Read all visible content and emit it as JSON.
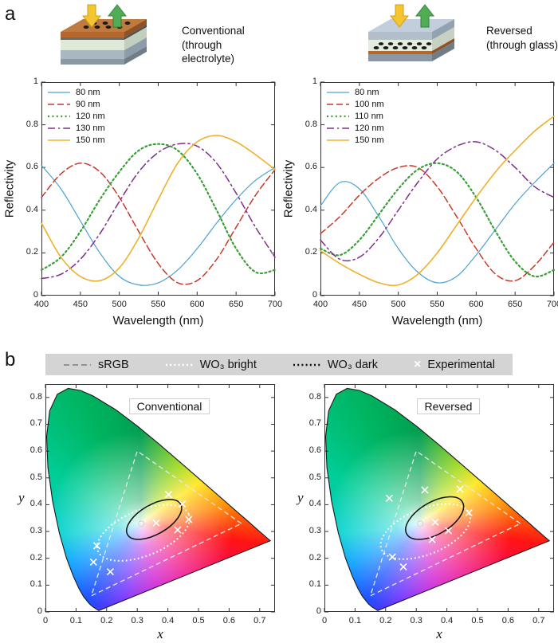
{
  "panel_a": {
    "label": "a",
    "conventional_caption": [
      "Conventional",
      "(through electrolyte)"
    ],
    "reversed_caption": [
      "Reversed",
      "(through glass)"
    ]
  },
  "panel_b": {
    "label": "b",
    "legend": {
      "srgb": "sRGB",
      "wo3_bright": "WO₃ bright",
      "wo3_dark": "WO₃ dark",
      "experimental": "Experimental"
    }
  },
  "colors": {
    "blue": "#4BA3D3",
    "red": "#C8392B",
    "green": "#3C9E38",
    "purple": "#7E2F8E",
    "orange": "#EFB02A",
    "legend_strip_bg": "#d4d4d4"
  },
  "cie_spectral_locus": [
    [
      0.1741,
      0.005
    ],
    [
      0.1566,
      0.0177
    ],
    [
      0.144,
      0.0297
    ],
    [
      0.1241,
      0.0578
    ],
    [
      0.1096,
      0.0868
    ],
    [
      0.0913,
      0.1327
    ],
    [
      0.0687,
      0.2007
    ],
    [
      0.0454,
      0.295
    ],
    [
      0.0235,
      0.4127
    ],
    [
      0.0082,
      0.5384
    ],
    [
      0.0039,
      0.6548
    ],
    [
      0.0139,
      0.7502
    ],
    [
      0.0389,
      0.812
    ],
    [
      0.0743,
      0.8338
    ],
    [
      0.1142,
      0.8262
    ],
    [
      0.1547,
      0.8059
    ],
    [
      0.2296,
      0.7543
    ],
    [
      0.3016,
      0.6923
    ],
    [
      0.3731,
      0.6245
    ],
    [
      0.4441,
      0.5547
    ],
    [
      0.5125,
      0.4866
    ],
    [
      0.5752,
      0.4242
    ],
    [
      0.627,
      0.3725
    ],
    [
      0.6658,
      0.334
    ],
    [
      0.6915,
      0.3083
    ],
    [
      0.719,
      0.2809
    ],
    [
      0.7347,
      0.2653
    ]
  ],
  "chart_data": [
    {
      "id": "reflectivity-conventional",
      "type": "line",
      "title": "Conventional (through electrolyte)",
      "xlabel": "Wavelength (nm)",
      "ylabel": "Reflectivity",
      "xlim": [
        400,
        700
      ],
      "ylim": [
        0,
        1
      ],
      "xticks": [
        400,
        450,
        500,
        550,
        600,
        650,
        700
      ],
      "yticks": [
        0,
        0.2,
        0.4,
        0.6,
        0.8,
        1
      ],
      "legend_position": "top-left",
      "x": [
        400,
        425,
        450,
        475,
        500,
        525,
        550,
        575,
        600,
        625,
        650,
        675,
        700
      ],
      "series": [
        {
          "name": "80 nm",
          "color": "#4BA3D3",
          "style": "solid",
          "width": 1.2,
          "values": [
            0.61,
            0.5,
            0.35,
            0.2,
            0.09,
            0.05,
            0.06,
            0.12,
            0.22,
            0.34,
            0.45,
            0.54,
            0.6
          ]
        },
        {
          "name": "90 nm",
          "color": "#C8392B",
          "style": "dashed",
          "width": 1.5,
          "values": [
            0.46,
            0.57,
            0.62,
            0.58,
            0.46,
            0.3,
            0.15,
            0.06,
            0.07,
            0.17,
            0.32,
            0.47,
            0.59
          ]
        },
        {
          "name": "120 nm",
          "color": "#3C9E38",
          "style": "dotted",
          "width": 2.2,
          "values": [
            0.12,
            0.18,
            0.3,
            0.45,
            0.58,
            0.68,
            0.71,
            0.68,
            0.57,
            0.4,
            0.22,
            0.11,
            0.12
          ]
        },
        {
          "name": "130 nm",
          "color": "#7E2F8E",
          "style": "dashdot",
          "width": 1.5,
          "values": [
            0.08,
            0.1,
            0.17,
            0.29,
            0.44,
            0.58,
            0.67,
            0.71,
            0.7,
            0.62,
            0.48,
            0.32,
            0.18
          ]
        },
        {
          "name": "150 nm",
          "color": "#EFB02A",
          "style": "solid",
          "width": 1.6,
          "values": [
            0.34,
            0.18,
            0.09,
            0.07,
            0.13,
            0.27,
            0.45,
            0.62,
            0.72,
            0.75,
            0.72,
            0.66,
            0.59
          ]
        }
      ]
    },
    {
      "id": "reflectivity-reversed",
      "type": "line",
      "title": "Reversed (through glass)",
      "xlabel": "Wavelength (nm)",
      "ylabel": "Reflectivity",
      "xlim": [
        400,
        700
      ],
      "ylim": [
        0,
        1
      ],
      "xticks": [
        400,
        450,
        500,
        550,
        600,
        650,
        700
      ],
      "yticks": [
        0,
        0.2,
        0.4,
        0.6,
        0.8,
        1
      ],
      "legend_position": "top-left",
      "x": [
        400,
        425,
        450,
        475,
        500,
        525,
        550,
        575,
        600,
        625,
        650,
        675,
        700
      ],
      "series": [
        {
          "name": "80 nm",
          "color": "#4BA3D3",
          "style": "solid",
          "width": 1.2,
          "values": [
            0.42,
            0.53,
            0.5,
            0.37,
            0.22,
            0.11,
            0.06,
            0.09,
            0.19,
            0.31,
            0.43,
            0.53,
            0.62
          ]
        },
        {
          "name": "100 nm",
          "color": "#C8392B",
          "style": "dashed",
          "width": 1.5,
          "values": [
            0.29,
            0.37,
            0.47,
            0.55,
            0.6,
            0.6,
            0.51,
            0.37,
            0.22,
            0.1,
            0.07,
            0.14,
            0.25
          ]
        },
        {
          "name": "110 nm",
          "color": "#3C9E38",
          "style": "dotted",
          "width": 2.2,
          "values": [
            0.22,
            0.19,
            0.26,
            0.38,
            0.5,
            0.59,
            0.62,
            0.58,
            0.46,
            0.3,
            0.16,
            0.09,
            0.12
          ]
        },
        {
          "name": "120 nm",
          "color": "#7E2F8E",
          "style": "dashdot",
          "width": 1.5,
          "values": [
            0.26,
            0.17,
            0.18,
            0.27,
            0.4,
            0.53,
            0.64,
            0.7,
            0.72,
            0.68,
            0.6,
            0.51,
            0.46
          ]
        },
        {
          "name": "150 nm",
          "color": "#EFB02A",
          "style": "solid",
          "width": 1.6,
          "values": [
            0.21,
            0.15,
            0.1,
            0.06,
            0.05,
            0.1,
            0.2,
            0.33,
            0.46,
            0.58,
            0.68,
            0.77,
            0.84
          ]
        }
      ]
    },
    {
      "id": "cie-conventional",
      "type": "scatter",
      "title": "Conventional",
      "xlabel": "x",
      "ylabel": "y",
      "xlim": [
        0,
        0.75
      ],
      "ylim": [
        0,
        0.85
      ],
      "xticks": [
        0,
        0.1,
        0.2,
        0.3,
        0.4,
        0.5,
        0.6,
        0.7
      ],
      "yticks": [
        0,
        0.1,
        0.2,
        0.3,
        0.4,
        0.5,
        0.6,
        0.7,
        0.8
      ],
      "srgb_triangle": [
        [
          0.64,
          0.33
        ],
        [
          0.3,
          0.6
        ],
        [
          0.15,
          0.06
        ]
      ],
      "white_point": [
        0.313,
        0.329
      ],
      "wo3_bright_ellipse": {
        "cx": 0.32,
        "cy": 0.295,
        "rx": 0.16,
        "ry": 0.085,
        "angle_deg": 22
      },
      "wo3_dark_ellipse": {
        "cx": 0.355,
        "cy": 0.345,
        "rx": 0.1,
        "ry": 0.055,
        "angle_deg": 30
      },
      "experimental_points": [
        [
          0.402,
          0.438
        ],
        [
          0.447,
          0.403
        ],
        [
          0.468,
          0.345
        ],
        [
          0.432,
          0.306
        ],
        [
          0.362,
          0.332
        ],
        [
          0.168,
          0.247
        ],
        [
          0.157,
          0.186
        ],
        [
          0.212,
          0.15
        ]
      ]
    },
    {
      "id": "cie-reversed",
      "type": "scatter",
      "title": "Reversed",
      "xlabel": "x",
      "ylabel": "y",
      "xlim": [
        0,
        0.75
      ],
      "ylim": [
        0,
        0.85
      ],
      "xticks": [
        0,
        0.1,
        0.2,
        0.3,
        0.4,
        0.5,
        0.6,
        0.7
      ],
      "yticks": [
        0,
        0.1,
        0.2,
        0.3,
        0.4,
        0.5,
        0.6,
        0.7,
        0.8
      ],
      "srgb_triangle": [
        [
          0.64,
          0.33
        ],
        [
          0.3,
          0.6
        ],
        [
          0.15,
          0.06
        ]
      ],
      "white_point": [
        0.313,
        0.329
      ],
      "wo3_bright_ellipse": {
        "cx": 0.33,
        "cy": 0.3,
        "rx": 0.155,
        "ry": 0.085,
        "angle_deg": 22
      },
      "wo3_dark_ellipse": {
        "cx": 0.36,
        "cy": 0.35,
        "rx": 0.105,
        "ry": 0.06,
        "angle_deg": 30
      },
      "experimental_points": [
        [
          0.212,
          0.424
        ],
        [
          0.328,
          0.455
        ],
        [
          0.443,
          0.458
        ],
        [
          0.472,
          0.37
        ],
        [
          0.405,
          0.303
        ],
        [
          0.352,
          0.27
        ],
        [
          0.362,
          0.335
        ],
        [
          0.222,
          0.205
        ],
        [
          0.258,
          0.168
        ]
      ]
    }
  ]
}
